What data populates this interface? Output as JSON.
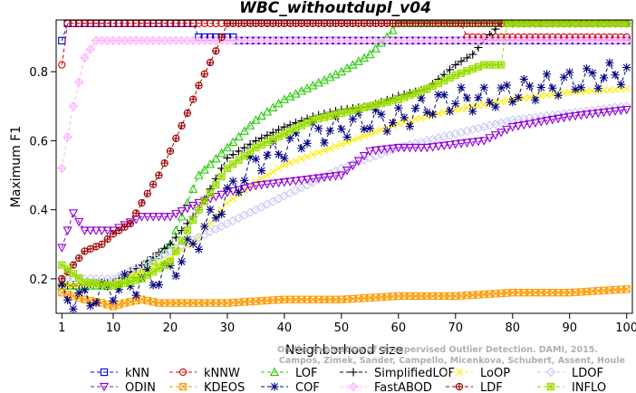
{
  "chart_data": {
    "type": "line",
    "title": "WBC_withoutdupl_v04",
    "xlabel": "Neighborhood size",
    "ylabel": "Maximum F1",
    "xlim": [
      0,
      101
    ],
    "ylim": [
      0.1,
      0.95
    ],
    "xticks": [
      1,
      10,
      20,
      30,
      40,
      50,
      60,
      70,
      80,
      90,
      100
    ],
    "yticks": [
      0.2,
      0.4,
      0.6,
      0.8
    ],
    "credit": [
      "Campos, Zimek, Sander, Campello, Micenkova, Schubert, Assent, Houle",
      "On the Evaluation of Unsupervised Outlier Detection. DAMI, 2015."
    ],
    "legend_position": "bottom",
    "series": [
      {
        "name": "kNN",
        "color": "#0000cd",
        "marker": "square",
        "anchors": [
          [
            1,
            0.89
          ],
          [
            2,
            0.94
          ],
          [
            24,
            0.94
          ],
          [
            25,
            0.9
          ],
          [
            31,
            0.9
          ],
          [
            32,
            0.89
          ],
          [
            100,
            0.89
          ]
        ]
      },
      {
        "name": "kNNW",
        "color": "#d40000",
        "marker": "circle",
        "anchors": [
          [
            1,
            0.82
          ],
          [
            2,
            0.94
          ],
          [
            71,
            0.94
          ],
          [
            72,
            0.9
          ],
          [
            100,
            0.9
          ]
        ]
      },
      {
        "name": "LOF",
        "color": "#22cc00",
        "marker": "triangle-up",
        "anchors": [
          [
            1,
            0.18
          ],
          [
            10,
            0.18
          ],
          [
            15,
            0.22
          ],
          [
            20,
            0.3
          ],
          [
            25,
            0.5
          ],
          [
            30,
            0.58
          ],
          [
            35,
            0.66
          ],
          [
            40,
            0.72
          ],
          [
            45,
            0.76
          ],
          [
            50,
            0.8
          ],
          [
            55,
            0.85
          ],
          [
            58,
            0.9
          ],
          [
            60,
            0.94
          ],
          [
            100,
            0.94
          ]
        ]
      },
      {
        "name": "SimplifiedLOF",
        "color": "#000000",
        "marker": "plus",
        "anchors": [
          [
            1,
            0.18
          ],
          [
            10,
            0.19
          ],
          [
            15,
            0.24
          ],
          [
            20,
            0.3
          ],
          [
            25,
            0.4
          ],
          [
            30,
            0.55
          ],
          [
            35,
            0.6
          ],
          [
            40,
            0.64
          ],
          [
            45,
            0.67
          ],
          [
            50,
            0.69
          ],
          [
            55,
            0.7
          ],
          [
            60,
            0.73
          ],
          [
            65,
            0.75
          ],
          [
            70,
            0.82
          ],
          [
            73,
            0.85
          ],
          [
            75,
            0.89
          ],
          [
            78,
            0.94
          ],
          [
            100,
            0.94
          ]
        ]
      },
      {
        "name": "LoOP",
        "color": "#ffee00",
        "marker": "x",
        "anchors": [
          [
            1,
            0.18
          ],
          [
            10,
            0.19
          ],
          [
            15,
            0.22
          ],
          [
            20,
            0.26
          ],
          [
            25,
            0.32
          ],
          [
            30,
            0.42
          ],
          [
            35,
            0.48
          ],
          [
            40,
            0.53
          ],
          [
            45,
            0.56
          ],
          [
            50,
            0.59
          ],
          [
            55,
            0.62
          ],
          [
            60,
            0.65
          ],
          [
            65,
            0.67
          ],
          [
            70,
            0.69
          ],
          [
            80,
            0.72
          ],
          [
            90,
            0.74
          ],
          [
            100,
            0.75
          ]
        ]
      },
      {
        "name": "LDOF",
        "color": "#c8c8f5",
        "marker": "diamond",
        "anchors": [
          [
            1,
            0.2
          ],
          [
            10,
            0.2
          ],
          [
            15,
            0.24
          ],
          [
            20,
            0.28
          ],
          [
            25,
            0.32
          ],
          [
            30,
            0.36
          ],
          [
            35,
            0.4
          ],
          [
            40,
            0.44
          ],
          [
            45,
            0.48
          ],
          [
            50,
            0.52
          ],
          [
            55,
            0.55
          ],
          [
            60,
            0.58
          ],
          [
            65,
            0.6
          ],
          [
            70,
            0.62
          ],
          [
            75,
            0.64
          ],
          [
            80,
            0.66
          ],
          [
            90,
            0.68
          ],
          [
            100,
            0.7
          ]
        ]
      },
      {
        "name": "ODIN",
        "color": "#9400d3",
        "marker": "triangle-down",
        "anchors": [
          [
            1,
            0.29
          ],
          [
            3,
            0.39
          ],
          [
            5,
            0.34
          ],
          [
            10,
            0.34
          ],
          [
            15,
            0.38
          ],
          [
            20,
            0.38
          ],
          [
            25,
            0.42
          ],
          [
            30,
            0.45
          ],
          [
            35,
            0.47
          ],
          [
            40,
            0.48
          ],
          [
            45,
            0.49
          ],
          [
            50,
            0.5
          ],
          [
            55,
            0.57
          ],
          [
            60,
            0.58
          ],
          [
            65,
            0.58
          ],
          [
            70,
            0.59
          ],
          [
            75,
            0.6
          ],
          [
            80,
            0.64
          ],
          [
            90,
            0.67
          ],
          [
            100,
            0.69
          ]
        ]
      },
      {
        "name": "KDEOS",
        "color": "#ff9900",
        "marker": "square-x",
        "anchors": [
          [
            1,
            0.16
          ],
          [
            5,
            0.14
          ],
          [
            8,
            0.13
          ],
          [
            10,
            0.12
          ],
          [
            12,
            0.13
          ],
          [
            15,
            0.14
          ],
          [
            18,
            0.13
          ],
          [
            20,
            0.13
          ],
          [
            30,
            0.13
          ],
          [
            40,
            0.14
          ],
          [
            50,
            0.14
          ],
          [
            60,
            0.15
          ],
          [
            70,
            0.15
          ],
          [
            80,
            0.16
          ],
          [
            90,
            0.16
          ],
          [
            100,
            0.17
          ]
        ]
      },
      {
        "name": "COF",
        "color": "#000080",
        "marker": "star",
        "anchors": [
          [
            1,
            0.15
          ],
          [
            5,
            0.14
          ],
          [
            10,
            0.17
          ],
          [
            15,
            0.19
          ],
          [
            20,
            0.22
          ],
          [
            22,
            0.26
          ],
          [
            25,
            0.32
          ],
          [
            30,
            0.44
          ],
          [
            35,
            0.54
          ],
          [
            40,
            0.58
          ],
          [
            45,
            0.62
          ],
          [
            50,
            0.64
          ],
          [
            55,
            0.66
          ],
          [
            60,
            0.66
          ],
          [
            65,
            0.7
          ],
          [
            70,
            0.72
          ],
          [
            75,
            0.72
          ],
          [
            80,
            0.74
          ],
          [
            90,
            0.77
          ],
          [
            100,
            0.8
          ]
        ]
      },
      {
        "name": "FastABOD",
        "color": "#ffb0ff",
        "marker": "diamond-plus",
        "anchors": [
          [
            1,
            0.52
          ],
          [
            3,
            0.7
          ],
          [
            5,
            0.84
          ],
          [
            7,
            0.89
          ],
          [
            100,
            0.89
          ]
        ]
      },
      {
        "name": "LDF",
        "color": "#a00000",
        "marker": "circle-plus",
        "anchors": [
          [
            1,
            0.2
          ],
          [
            3,
            0.24
          ],
          [
            5,
            0.28
          ],
          [
            8,
            0.3
          ],
          [
            10,
            0.33
          ],
          [
            13,
            0.36
          ],
          [
            15,
            0.42
          ],
          [
            18,
            0.5
          ],
          [
            20,
            0.57
          ],
          [
            23,
            0.68
          ],
          [
            25,
            0.76
          ],
          [
            28,
            0.86
          ],
          [
            30,
            0.94
          ],
          [
            100,
            0.94
          ]
        ]
      },
      {
        "name": "INFLO",
        "color": "#99dd00",
        "marker": "square-star",
        "anchors": [
          [
            1,
            0.24
          ],
          [
            5,
            0.19
          ],
          [
            10,
            0.18
          ],
          [
            15,
            0.2
          ],
          [
            20,
            0.25
          ],
          [
            25,
            0.4
          ],
          [
            30,
            0.52
          ],
          [
            35,
            0.58
          ],
          [
            40,
            0.62
          ],
          [
            45,
            0.66
          ],
          [
            50,
            0.68
          ],
          [
            55,
            0.7
          ],
          [
            60,
            0.72
          ],
          [
            65,
            0.75
          ],
          [
            70,
            0.79
          ],
          [
            75,
            0.82
          ],
          [
            78,
            0.82
          ],
          [
            79,
            0.94
          ],
          [
            100,
            0.94
          ]
        ]
      }
    ]
  }
}
